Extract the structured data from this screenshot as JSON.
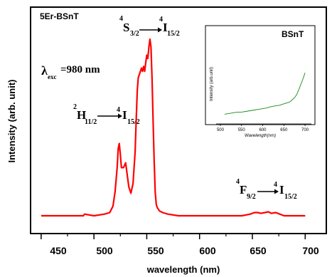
{
  "chart_data": [
    {
      "type": "line",
      "title": "5Er-BSnT",
      "xlabel": "wavelength (nm)",
      "ylabel": "Intensity (arb. unit)",
      "xlim": [
        440,
        720
      ],
      "x_ticks": [
        450,
        500,
        550,
        600,
        650,
        700
      ],
      "y_ticks_labeled": false,
      "grid": false,
      "legend": "none",
      "series": [
        {
          "color": "#ff0000",
          "x": [
            450,
            480,
            490,
            491,
            500,
            510,
            515,
            518,
            520,
            522,
            523,
            524,
            525,
            526,
            528,
            530,
            531,
            533,
            535,
            537,
            539,
            540,
            541,
            542,
            543,
            544,
            545,
            546,
            547,
            548,
            549,
            550,
            551,
            552,
            553,
            554,
            555,
            556,
            557,
            558,
            559,
            560,
            562,
            565,
            570,
            580,
            600,
            620,
            640,
            648,
            652,
            655,
            658,
            662,
            665,
            668,
            672,
            676,
            680,
            690,
            700
          ],
          "y": [
            0.0,
            0.0,
            0.0,
            0.01,
            0.0,
            0.01,
            0.02,
            0.06,
            0.15,
            0.3,
            0.42,
            0.45,
            0.38,
            0.3,
            0.3,
            0.33,
            0.28,
            0.18,
            0.14,
            0.2,
            0.4,
            0.6,
            0.78,
            0.86,
            0.88,
            0.9,
            0.92,
            0.9,
            0.93,
            0.9,
            0.95,
            1.0,
            0.98,
            1.05,
            1.1,
            1.05,
            0.85,
            0.6,
            0.35,
            0.15,
            0.07,
            0.05,
            0.03,
            0.02,
            0.01,
            0.0,
            0.0,
            0.0,
            0.0,
            0.01,
            0.02,
            0.02,
            0.015,
            0.02,
            0.025,
            0.015,
            0.02,
            0.01,
            0.0,
            0.0,
            0.0
          ]
        }
      ],
      "annotations": {
        "excitation": {
          "lambda": "λ",
          "sub": "exc",
          "value": "=980 nm"
        },
        "t1": {
          "pre_sup": "2",
          "main": "H",
          "sub": "11/2",
          "arrow_sup": "4",
          "target": "I",
          "target_sub": "15/2"
        },
        "t2": {
          "pre_sup": "4",
          "main": "S",
          "sub": "3/2",
          "arrow_sup": "4",
          "target": "I",
          "target_sub": "15/2"
        },
        "t3": {
          "pre_sup": "4",
          "main": "F",
          "sub": "9/2",
          "arrow_sup": "4",
          "target": "I",
          "target_sub": "15/2"
        }
      }
    },
    {
      "type": "line",
      "title": "BSnT",
      "xlabel": "Wavelength(nm)",
      "ylabel": "Intensity (arb.unit)",
      "xlim": [
        490,
        715
      ],
      "x_ticks": [
        500,
        550,
        600,
        650,
        700
      ],
      "grid": false,
      "series": [
        {
          "color": "#1a8a1a",
          "x": [
            510,
            520,
            530,
            540,
            550,
            560,
            570,
            580,
            590,
            600,
            610,
            620,
            630,
            640,
            650,
            660,
            665,
            670,
            675,
            680,
            685,
            690,
            695,
            700
          ],
          "y": [
            0.12,
            0.13,
            0.14,
            0.15,
            0.15,
            0.16,
            0.17,
            0.18,
            0.19,
            0.2,
            0.21,
            0.23,
            0.24,
            0.25,
            0.27,
            0.29,
            0.3,
            0.33,
            0.36,
            0.4,
            0.47,
            0.55,
            0.63,
            0.72
          ]
        }
      ]
    }
  ]
}
